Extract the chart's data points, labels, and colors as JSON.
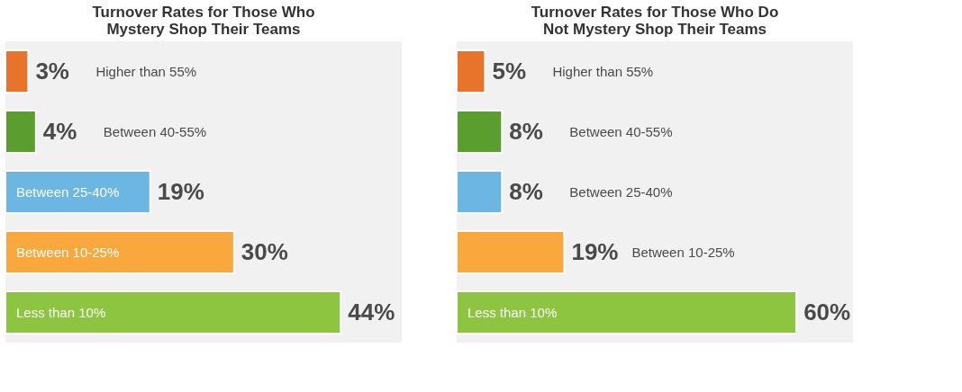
{
  "chart_data": [
    {
      "type": "bar",
      "orientation": "horizontal",
      "title": "Turnover Rates for Those Who Mystery Shop Their Teams",
      "categories": [
        "Higher than 55%",
        "Between 40-55%",
        "Between 25-40%",
        "Between 10-25%",
        "Less than 10%"
      ],
      "values": [
        3,
        4,
        19,
        30,
        44
      ],
      "colors": [
        "#e8732a",
        "#5a9e2f",
        "#6cb6e4",
        "#f8a83c",
        "#8dc540"
      ],
      "value_labels": [
        "3%",
        "4%",
        "19%",
        "30%",
        "44%"
      ],
      "xlim": [
        0,
        52
      ],
      "tick_labels": false,
      "grid": false
    },
    {
      "type": "bar",
      "orientation": "horizontal",
      "title": "Turnover Rates for Those Who Do Not Mystery Shop Their Teams",
      "categories": [
        "Higher than 55%",
        "Between 40-55%",
        "Between 25-40%",
        "Between 10-25%",
        "Less than 10%"
      ],
      "values": [
        5,
        8,
        8,
        19,
        60
      ],
      "colors": [
        "#e8732a",
        "#5a9e2f",
        "#6cb6e4",
        "#f8a83c",
        "#8dc540"
      ],
      "value_labels": [
        "5%",
        "8%",
        "8%",
        "19%",
        "60%"
      ],
      "xlim": [
        0,
        70
      ],
      "tick_labels": false,
      "grid": false
    }
  ]
}
